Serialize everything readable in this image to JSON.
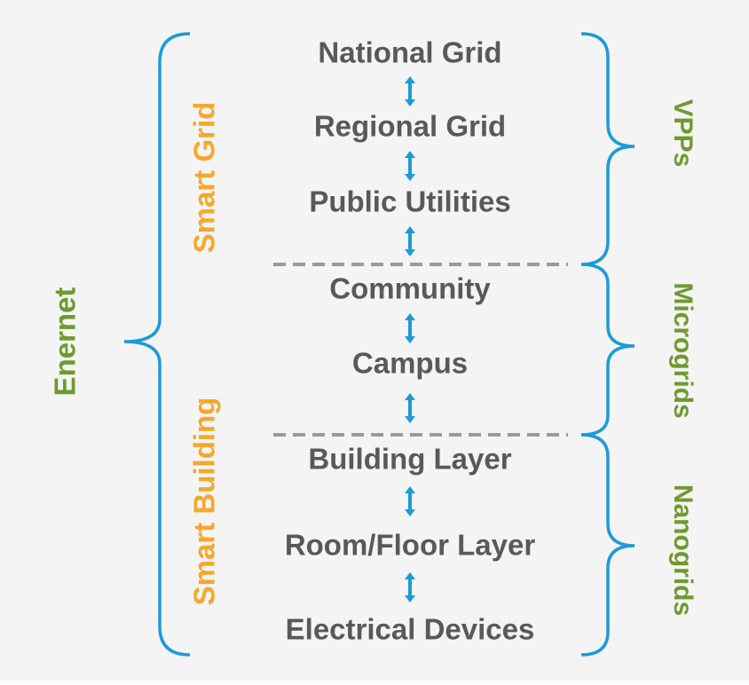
{
  "layers": [
    "National Grid",
    "Regional Grid",
    "Public Utilities",
    "Community",
    "Campus",
    "Building Layer",
    "Room/Floor Layer",
    "Electrical Devices"
  ],
  "left_groups": {
    "outer": "Enernet",
    "upper": "Smart Grid",
    "lower": "Smart Building"
  },
  "right_groups": [
    "VPPs",
    "Microgrids",
    "Nanogrids"
  ]
}
